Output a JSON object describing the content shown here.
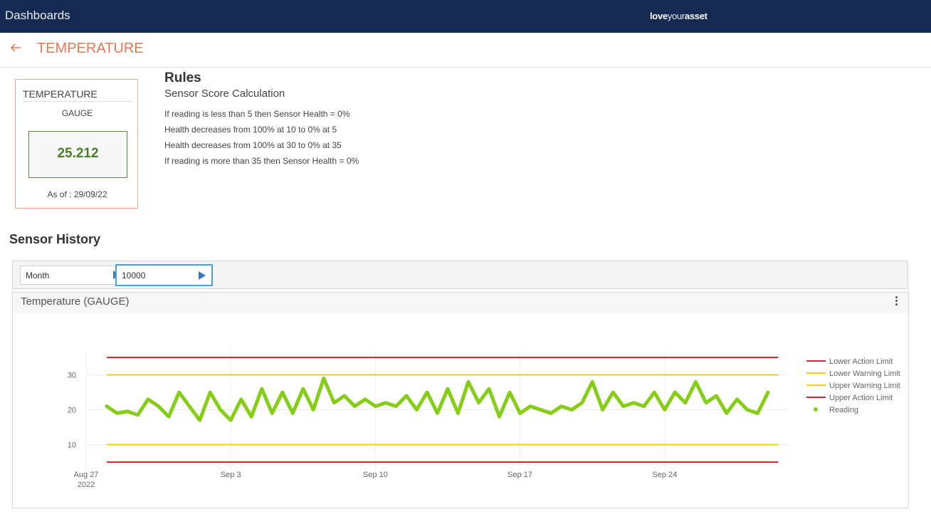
{
  "topbar": {
    "title": "Dashboards",
    "brand_bold1": "love",
    "brand_light": "your",
    "brand_bold2": "asset"
  },
  "header": {
    "back_icon": "arrow-left-icon",
    "title": "TEMPERATURE"
  },
  "sensor_card": {
    "name": "TEMPERATURE",
    "type": "GAUGE",
    "value": "25.212",
    "as_of": "As of : 29/09/22",
    "value_color": "#4a7f2a"
  },
  "rules": {
    "title": "Rules",
    "subtitle": "Sensor Score Calculation",
    "lines": [
      "If reading is less than 5 then Sensor Health = 0%",
      "Health decreases from 100% at 10 to 0% at 5",
      "Health decreases from 100% at 30 to 0% at 35",
      "If reading is more than 35 then Sensor Health = 0%"
    ]
  },
  "history": {
    "title": "Sensor History",
    "period_select": "Month",
    "count_select": "10000",
    "chart_title": "Temperature (GAUGE)",
    "menu_icon": "kebab-menu-icon"
  },
  "colors": {
    "action_limit": "#d0282e",
    "warning_limit": "#f0d20a",
    "reading": "#86cd18",
    "accent": "#e07a55",
    "topbar": "#152a52"
  },
  "chart_data": {
    "type": "line",
    "x_axis": {
      "type": "date",
      "range": [
        "2022-08-27",
        "2022-09-30"
      ],
      "ticks": [
        {
          "date": "2022-08-27",
          "label": "Aug 27",
          "sublabel": "2022"
        },
        {
          "date": "2022-09-03",
          "label": "Sep 3"
        },
        {
          "date": "2022-09-10",
          "label": "Sep 10"
        },
        {
          "date": "2022-09-17",
          "label": "Sep 17"
        },
        {
          "date": "2022-09-24",
          "label": "Sep 24"
        }
      ]
    },
    "y_axis": {
      "range": [
        5,
        35
      ],
      "ticks": [
        10,
        20,
        30
      ]
    },
    "grid": true,
    "legend_position": "right",
    "limits": [
      {
        "name": "Lower Action Limit",
        "value": 5,
        "color": "#d0282e"
      },
      {
        "name": "Lower Warning Limit",
        "value": 10,
        "color": "#f0d20a"
      },
      {
        "name": "Upper Warning Limit",
        "value": 30,
        "color": "#f0d20a"
      },
      {
        "name": "Upper Action Limit",
        "value": 35,
        "color": "#d0282e"
      }
    ],
    "reading_series": {
      "name": "Reading",
      "color": "#86cd18",
      "points": [
        [
          "2022-08-28",
          21
        ],
        [
          "2022-08-28T12:00",
          19
        ],
        [
          "2022-08-29",
          19.5
        ],
        [
          "2022-08-29T12:00",
          18.5
        ],
        [
          "2022-08-30",
          23
        ],
        [
          "2022-08-30T12:00",
          21
        ],
        [
          "2022-08-31",
          18
        ],
        [
          "2022-08-31T12:00",
          25
        ],
        [
          "2022-09-01",
          21
        ],
        [
          "2022-09-01T12:00",
          17
        ],
        [
          "2022-09-02",
          25
        ],
        [
          "2022-09-02T12:00",
          20
        ],
        [
          "2022-09-03",
          17
        ],
        [
          "2022-09-03T12:00",
          23
        ],
        [
          "2022-09-04",
          18
        ],
        [
          "2022-09-04T12:00",
          26
        ],
        [
          "2022-09-05",
          19
        ],
        [
          "2022-09-05T12:00",
          25
        ],
        [
          "2022-09-06",
          19
        ],
        [
          "2022-09-06T12:00",
          26
        ],
        [
          "2022-09-07",
          20
        ],
        [
          "2022-09-07T12:00",
          29
        ],
        [
          "2022-09-08",
          22
        ],
        [
          "2022-09-08T12:00",
          24
        ],
        [
          "2022-09-09",
          21
        ],
        [
          "2022-09-09T12:00",
          23
        ],
        [
          "2022-09-10",
          21
        ],
        [
          "2022-09-10T12:00",
          22
        ],
        [
          "2022-09-11",
          21
        ],
        [
          "2022-09-11T12:00",
          24
        ],
        [
          "2022-09-12",
          20
        ],
        [
          "2022-09-12T12:00",
          25
        ],
        [
          "2022-09-13",
          19
        ],
        [
          "2022-09-13T12:00",
          26
        ],
        [
          "2022-09-14",
          19
        ],
        [
          "2022-09-14T12:00",
          28
        ],
        [
          "2022-09-15",
          22
        ],
        [
          "2022-09-15T12:00",
          26
        ],
        [
          "2022-09-16",
          18
        ],
        [
          "2022-09-16T12:00",
          25
        ],
        [
          "2022-09-17",
          19
        ],
        [
          "2022-09-17T12:00",
          21
        ],
        [
          "2022-09-18",
          20
        ],
        [
          "2022-09-18T12:00",
          19
        ],
        [
          "2022-09-19",
          21
        ],
        [
          "2022-09-19T12:00",
          20
        ],
        [
          "2022-09-20",
          22
        ],
        [
          "2022-09-20T12:00",
          28
        ],
        [
          "2022-09-21",
          20
        ],
        [
          "2022-09-21T12:00",
          25
        ],
        [
          "2022-09-22",
          21
        ],
        [
          "2022-09-22T12:00",
          22
        ],
        [
          "2022-09-23",
          21
        ],
        [
          "2022-09-23T12:00",
          25
        ],
        [
          "2022-09-24",
          20
        ],
        [
          "2022-09-24T12:00",
          25
        ],
        [
          "2022-09-25",
          22
        ],
        [
          "2022-09-25T12:00",
          28
        ],
        [
          "2022-09-26",
          22
        ],
        [
          "2022-09-26T12:00",
          24
        ],
        [
          "2022-09-27",
          19
        ],
        [
          "2022-09-27T12:00",
          23
        ],
        [
          "2022-09-28",
          20
        ],
        [
          "2022-09-28T12:00",
          19
        ],
        [
          "2022-09-29",
          25
        ]
      ]
    }
  }
}
